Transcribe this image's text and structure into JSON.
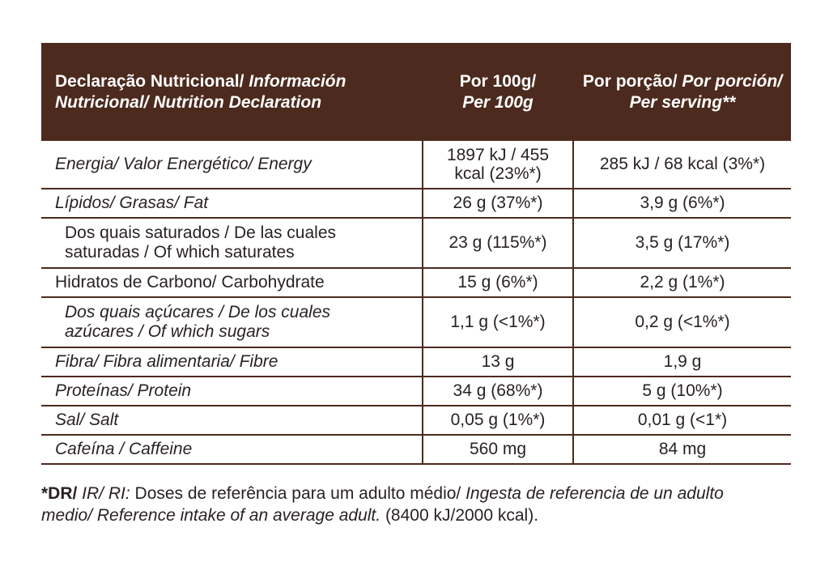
{
  "header": {
    "col1_normal": "Declaração Nutricional/ ",
    "col1_italic": "Información Nutricional/ Nutrition Declaration",
    "col2_line1": "Por 100g/",
    "col2_line2": "Per 100g",
    "col3_normal": "Por porção/ ",
    "col3_italic": "Por porción/ Per serving**"
  },
  "rows": [
    {
      "label": "Energia/ Valor Energético/ Energy",
      "per100": "1897 kJ / 455 kcal (23%*)",
      "serving": "285 kJ / 68 kcal (3%*)"
    },
    {
      "label": "Lípidos/ Grasas/ Fat",
      "per100": "26 g (37%*)",
      "serving": "3,9 g (6%*)"
    },
    {
      "label": "Dos quais saturados / De las cuales saturadas / Of which saturates",
      "per100": "23 g (115%*)",
      "serving": "3,5 g (17%*)"
    },
    {
      "label": "Hidratos de Carbono/ Carbohydrate",
      "per100": "15 g (6%*)",
      "serving": "2,2 g (1%*)"
    },
    {
      "label": "Dos quais açúcares / De los cuales azúcares / Of which sugars",
      "per100": "1,1 g (<1%*)",
      "serving": "0,2 g (<1%*)"
    },
    {
      "label": "Fibra/ Fibra alimentaria/ Fibre",
      "per100": "13 g",
      "serving": "1,9 g"
    },
    {
      "label": "Proteínas/ Protein",
      "per100": "34 g (68%*)",
      "serving": "5 g (10%*)"
    },
    {
      "label": "Sal/ Salt",
      "per100": "0,05 g (1%*)",
      "serving": "0,01 g (<1*)"
    },
    {
      "label": "Cafeína / Caffeine",
      "per100": "560 mg",
      "serving": "84 mg"
    }
  ],
  "footnote": {
    "bold": "*DR/",
    "italic1": " IR/ RI:",
    "normal1": " Doses de referência para um adulto médio/ ",
    "italic2": "Ingesta de referencia de un adulto medio/ Reference intake of an average adult.",
    "normal2": " (8400 kJ/2000 kcal)."
  },
  "colors": {
    "header_bg": "#4c2a1e",
    "border": "#4c2a1e",
    "text": "#2a2222"
  }
}
